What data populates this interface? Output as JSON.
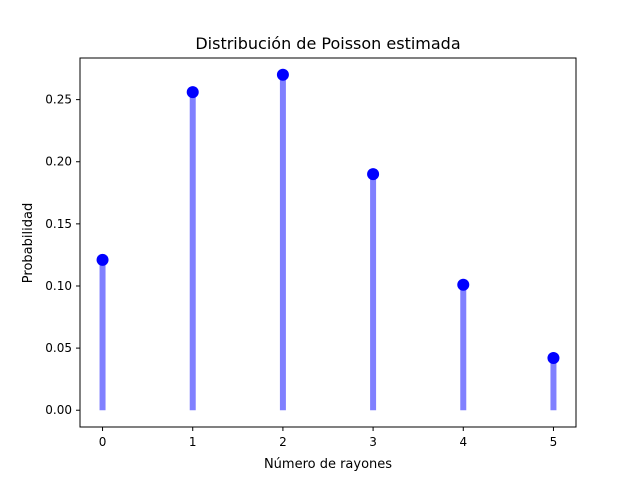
{
  "chart_data": {
    "type": "stem",
    "title": "Distribución de Poisson estimada",
    "xlabel": "Número de rayones",
    "ylabel": "Probabilidad",
    "x": [
      0,
      1,
      2,
      3,
      4,
      5
    ],
    "values": [
      0.121,
      0.256,
      0.27,
      0.19,
      0.101,
      0.042
    ],
    "xlim": [
      -0.25,
      5.25
    ],
    "ylim": [
      -0.0135,
      0.2835
    ],
    "xticks": [
      "0",
      "1",
      "2",
      "3",
      "4",
      "5"
    ],
    "yticks": [
      "0.00",
      "0.05",
      "0.10",
      "0.15",
      "0.20",
      "0.25"
    ],
    "ytick_values": [
      0,
      0.05,
      0.1,
      0.15,
      0.2,
      0.25
    ],
    "grid": false,
    "colors": {
      "marker": "#0000ff",
      "stem": "#8080ff"
    }
  }
}
